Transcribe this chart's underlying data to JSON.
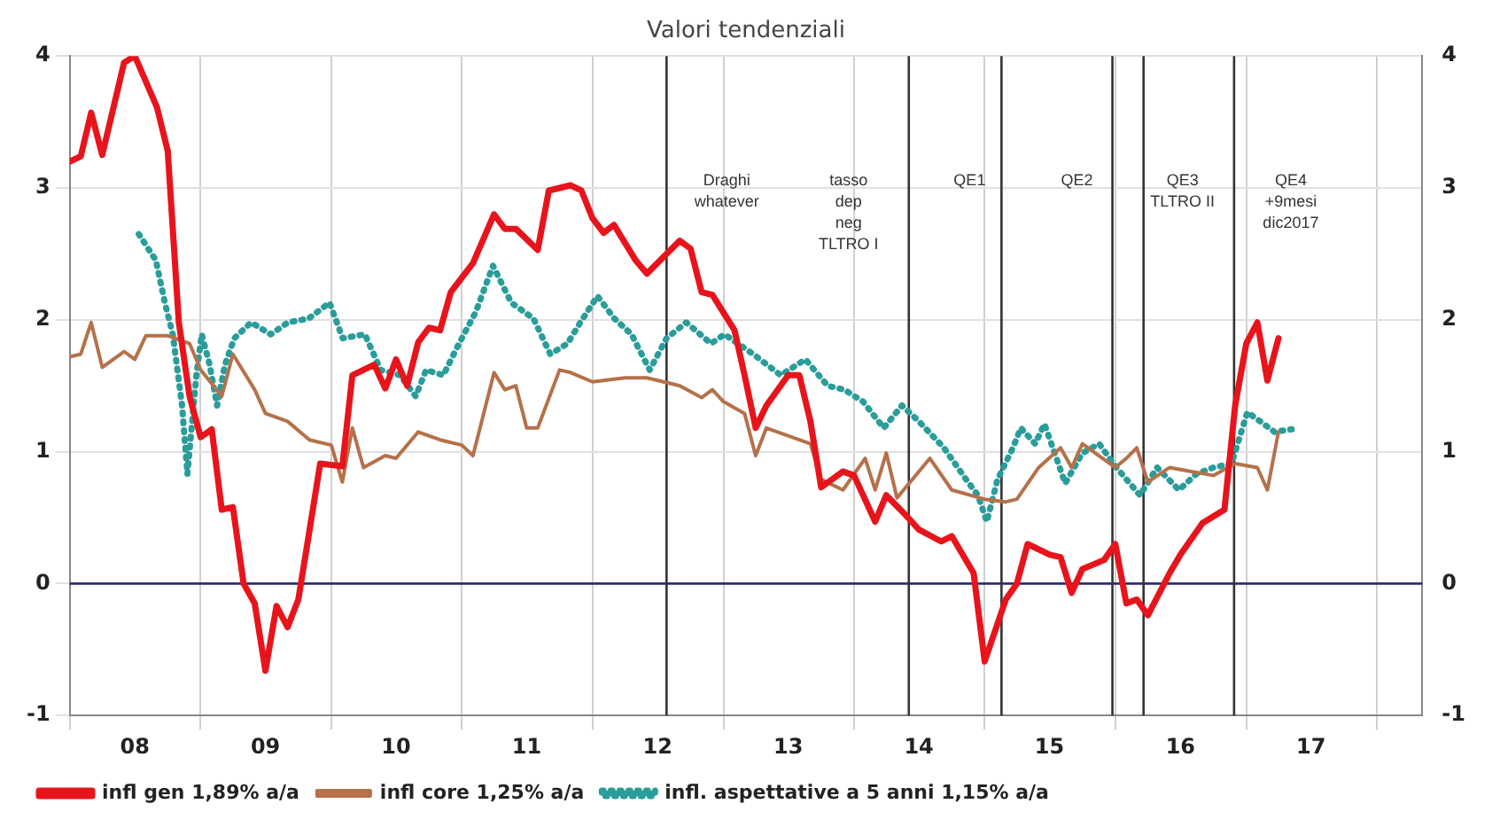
{
  "chart_data": {
    "type": "line",
    "title": "Valori tendenziali",
    "xlim": [
      "2008-01-01",
      "2018-05-08"
    ],
    "xticks": [
      {
        "value": "2008-01-01",
        "label": null
      },
      {
        "value": "2008-07-01",
        "label": "08"
      },
      {
        "value": "2009-01-01",
        "label": null
      },
      {
        "value": "2009-07-01",
        "label": "09"
      },
      {
        "value": "2010-01-01",
        "label": null
      },
      {
        "value": "2010-07-01",
        "label": "10"
      },
      {
        "value": "2011-01-01",
        "label": null
      },
      {
        "value": "2011-07-01",
        "label": "11"
      },
      {
        "value": "2012-01-01",
        "label": null
      },
      {
        "value": "2012-07-01",
        "label": "12"
      },
      {
        "value": "2013-01-01",
        "label": null
      },
      {
        "value": "2013-07-01",
        "label": "13"
      },
      {
        "value": "2014-01-01",
        "label": null
      },
      {
        "value": "2014-07-01",
        "label": "14"
      },
      {
        "value": "2015-01-01",
        "label": null
      },
      {
        "value": "2015-07-01",
        "label": "15"
      },
      {
        "value": "2016-01-01",
        "label": null
      },
      {
        "value": "2016-07-01",
        "label": "16"
      },
      {
        "value": "2017-01-01",
        "label": null
      },
      {
        "value": "2017-07-01",
        "label": "17"
      },
      {
        "value": "2018-01-01",
        "label": null
      }
    ],
    "ylim": [
      -1,
      4
    ],
    "yticks": [
      -1,
      0,
      1,
      2,
      3,
      4
    ],
    "y2lim": [
      -1,
      4
    ],
    "y2ticks": [
      -1,
      0,
      1,
      2,
      3,
      4
    ],
    "grid": true,
    "legend": "bottom",
    "marker": "none",
    "series": [
      {
        "name": "infl gen 1,89% a/a",
        "color": "#e8141c",
        "line_style": "solid",
        "x": [
          "2008-01",
          "2008-02",
          "2008-03",
          "2008-04",
          "2008-06",
          "2008-07",
          "2008-09",
          "2008-10",
          "2008-11",
          "2008-12",
          "2009-01",
          "2009-02",
          "2009-03",
          "2009-04",
          "2009-05",
          "2009-06",
          "2009-07",
          "2009-08",
          "2009-09",
          "2009-10",
          "2009-11",
          "2009-12",
          "2010-02",
          "2010-03",
          "2010-05",
          "2010-06",
          "2010-07",
          "2010-08",
          "2010-09",
          "2010-10",
          "2010-11",
          "2010-12",
          "2011-02",
          "2011-04",
          "2011-05",
          "2011-06",
          "2011-08",
          "2011-09",
          "2011-11",
          "2011-12",
          "2012-01",
          "2012-02",
          "2012-03",
          "2012-05",
          "2012-06",
          "2012-09",
          "2012-10",
          "2012-11",
          "2012-12",
          "2013-02",
          "2013-03",
          "2013-04",
          "2013-05",
          "2013-07",
          "2013-08",
          "2013-09",
          "2013-10",
          "2013-12",
          "2014-01",
          "2014-03",
          "2014-04",
          "2014-06",
          "2014-07",
          "2014-09",
          "2014-10",
          "2014-12",
          "2015-01",
          "2015-03",
          "2015-04",
          "2015-05",
          "2015-07",
          "2015-08",
          "2015-09",
          "2015-10",
          "2015-12",
          "2016-01",
          "2016-02",
          "2016-03",
          "2016-04",
          "2016-06",
          "2016-07",
          "2016-09",
          "2016-11",
          "2016-12",
          "2017-01",
          "2017-02",
          "2017-03",
          "2017-04"
        ],
        "values": [
          3.2,
          3.24,
          3.57,
          3.25,
          3.95,
          4.0,
          3.61,
          3.28,
          1.98,
          1.42,
          1.11,
          1.17,
          0.56,
          0.58,
          0.0,
          -0.15,
          -0.66,
          -0.17,
          -0.33,
          -0.12,
          0.4,
          0.91,
          0.89,
          1.58,
          1.66,
          1.48,
          1.7,
          1.5,
          1.83,
          1.94,
          1.92,
          2.21,
          2.43,
          2.8,
          2.69,
          2.69,
          2.53,
          2.98,
          3.02,
          2.98,
          2.77,
          2.66,
          2.72,
          2.45,
          2.35,
          2.6,
          2.54,
          2.21,
          2.19,
          1.92,
          1.58,
          1.18,
          1.35,
          1.58,
          1.58,
          1.23,
          0.73,
          0.85,
          0.82,
          0.47,
          0.67,
          0.5,
          0.41,
          0.32,
          0.36,
          0.08,
          -0.59,
          -0.12,
          0.0,
          0.3,
          0.22,
          0.2,
          -0.07,
          0.11,
          0.18,
          0.3,
          -0.15,
          -0.12,
          -0.24,
          0.08,
          0.22,
          0.46,
          0.56,
          1.35,
          1.82,
          1.98,
          1.54,
          1.86
        ]
      },
      {
        "name": "infl core 1,25% a/a",
        "color": "#b5714a",
        "line_style": "solid",
        "x": [
          "2008-01",
          "2008-02",
          "2008-03",
          "2008-04",
          "2008-06",
          "2008-07",
          "2008-08",
          "2008-10",
          "2008-12",
          "2009-01",
          "2009-03",
          "2009-04",
          "2009-06",
          "2009-07",
          "2009-09",
          "2009-11",
          "2010-01",
          "2010-02",
          "2010-03",
          "2010-04",
          "2010-06",
          "2010-07",
          "2010-09",
          "2010-11",
          "2011-01",
          "2011-02",
          "2011-04",
          "2011-05",
          "2011-06",
          "2011-07",
          "2011-08",
          "2011-10",
          "2011-11",
          "2012-01",
          "2012-04",
          "2012-06",
          "2012-09",
          "2012-11",
          "2012-12",
          "2013-01",
          "2013-03",
          "2013-04",
          "2013-05",
          "2013-09",
          "2013-10",
          "2013-12",
          "2014-02",
          "2014-03",
          "2014-04",
          "2014-05",
          "2014-08",
          "2014-10",
          "2015-01",
          "2015-03",
          "2015-04",
          "2015-06",
          "2015-08",
          "2015-09",
          "2015-10",
          "2016-01",
          "2016-02",
          "2016-03",
          "2016-04",
          "2016-06",
          "2016-08",
          "2016-10",
          "2016-12",
          "2017-02",
          "2017-03",
          "2017-04"
        ],
        "values": [
          1.72,
          1.74,
          1.98,
          1.64,
          1.76,
          1.7,
          1.88,
          1.88,
          1.82,
          1.62,
          1.42,
          1.74,
          1.47,
          1.29,
          1.23,
          1.09,
          1.05,
          0.77,
          1.18,
          0.88,
          0.97,
          0.95,
          1.15,
          1.09,
          1.05,
          0.97,
          1.6,
          1.47,
          1.5,
          1.18,
          1.18,
          1.62,
          1.6,
          1.53,
          1.56,
          1.56,
          1.5,
          1.41,
          1.47,
          1.38,
          1.29,
          0.97,
          1.18,
          1.06,
          0.79,
          0.71,
          0.95,
          0.71,
          0.99,
          0.65,
          0.95,
          0.71,
          0.64,
          0.62,
          0.64,
          0.88,
          1.03,
          0.88,
          1.06,
          0.88,
          0.95,
          1.03,
          0.77,
          0.88,
          0.85,
          0.82,
          0.91,
          0.88,
          0.71,
          1.15
        ]
      },
      {
        "name": "infl. aspettative a 5 anni 1,15% a/a",
        "color": "#2a9d9a",
        "line_style": "dotted",
        "x": [
          "2008-07-12",
          "2008-08-29",
          "2008-09-23",
          "2008-10-15",
          "2008-11-10",
          "2008-11-25",
          "2008-12-20",
          "2009-01-04",
          "2009-01-26",
          "2009-02-16",
          "2009-03-10",
          "2009-04-05",
          "2009-05-22",
          "2009-07-16",
          "2009-09-02",
          "2009-10-30",
          "2009-12-27",
          "2010-02-02",
          "2010-04-05",
          "2010-05-19",
          "2010-07-12",
          "2010-08-25",
          "2010-09-23",
          "2010-11-10",
          "2010-12-24",
          "2011-02-09",
          "2011-03-29",
          "2011-05-19",
          "2011-07-20",
          "2011-09-05",
          "2011-10-23",
          "2011-11-28",
          "2012-01-15",
          "2012-03-02",
          "2012-04-19",
          "2012-06-09",
          "2012-07-26",
          "2012-09-19",
          "2012-11-27",
          "2013-01-04",
          "2013-03-25",
          "2013-06-10",
          "2013-08-18",
          "2013-10-19",
          "2013-12-05",
          "2014-01-26",
          "2014-03-25",
          "2014-05-15",
          "2014-07-01",
          "2014-09-09",
          "2014-11-10",
          "2014-12-13",
          "2015-01-07",
          "2015-02-06",
          "2015-03-21",
          "2015-04-12",
          "2015-05-22",
          "2015-06-17",
          "2015-08-14",
          "2015-10-01",
          "2015-11-17",
          "2016-01-04",
          "2016-03-10",
          "2016-04-27",
          "2016-06-27",
          "2016-08-14",
          "2016-10-01",
          "2016-11-21",
          "2017-01-04",
          "2017-02-09",
          "2017-03-21",
          "2017-05-08"
        ],
        "values": [
          2.65,
          2.45,
          2.13,
          1.89,
          1.35,
          0.83,
          1.58,
          1.89,
          1.66,
          1.35,
          1.66,
          1.86,
          1.98,
          1.89,
          1.98,
          2.01,
          2.13,
          1.86,
          1.89,
          1.62,
          1.58,
          1.42,
          1.62,
          1.58,
          1.82,
          2.06,
          2.41,
          2.13,
          2.01,
          1.74,
          1.82,
          1.98,
          2.18,
          2.01,
          1.89,
          1.62,
          1.86,
          1.98,
          1.82,
          1.89,
          1.74,
          1.58,
          1.7,
          1.5,
          1.47,
          1.38,
          1.18,
          1.35,
          1.23,
          1.03,
          0.79,
          0.67,
          0.47,
          0.79,
          1.03,
          1.18,
          1.06,
          1.21,
          0.76,
          0.99,
          1.06,
          0.88,
          0.67,
          0.88,
          0.71,
          0.83,
          0.88,
          0.91,
          1.3,
          1.23,
          1.15,
          1.17
        ]
      }
    ],
    "ref_lines": [
      {
        "axis": "y",
        "value": 0,
        "color": "#2e2e6e"
      },
      {
        "axis": "x",
        "value": "2012-07-26",
        "label": "Draghi\nwhatever",
        "color": "#333333"
      },
      {
        "axis": "x",
        "value": "2014-06-03",
        "label": "tasso\ndep\nneg\nTLTRO I",
        "color": "#333333"
      },
      {
        "axis": "x",
        "value": "2015-02-17",
        "label": "QE1",
        "color": "#333333"
      },
      {
        "axis": "x",
        "value": "2015-12-24",
        "label": "QE2",
        "color": "#333333"
      },
      {
        "axis": "x",
        "value": "2016-03-20",
        "label": "QE3\nTLTRO II",
        "color": "#333333"
      },
      {
        "axis": "x",
        "value": "2016-11-28",
        "label": "QE4\n+9mesi\ndic2017",
        "color": "#333333"
      }
    ]
  }
}
